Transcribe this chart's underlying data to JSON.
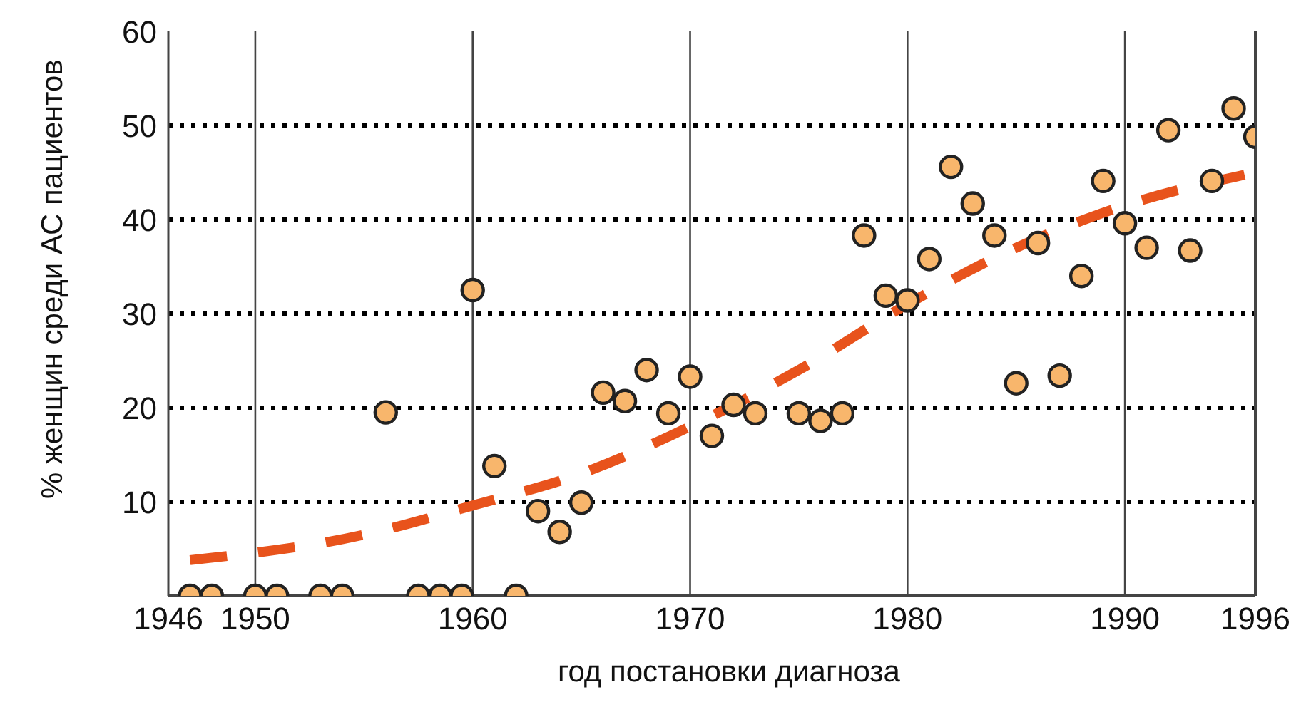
{
  "chart_data": {
    "type": "scatter",
    "xlabel": "год постановки диагноза",
    "ylabel": "% женщин среди АС пациентов",
    "xlim": [
      1946,
      1996
    ],
    "xticks": [
      1946,
      1950,
      1960,
      1970,
      1980,
      1990,
      1996
    ],
    "ylim": [
      0,
      60
    ],
    "yticks": [
      10,
      20,
      30,
      40,
      50,
      60
    ],
    "grid": true,
    "legend": false,
    "series": [
      {
        "color": "#f8b66c",
        "marker": "circle",
        "x": [
          1947,
          1948,
          1950,
          1951,
          1953,
          1954,
          1956,
          1957.5,
          1958.5,
          1959.5,
          1960,
          1961,
          1962,
          1963,
          1964,
          1965,
          1966,
          1967,
          1968,
          1969,
          1970,
          1971,
          1972,
          1973,
          1975,
          1976,
          1977,
          1978,
          1979,
          1980,
          1981,
          1982,
          1983,
          1984,
          1985,
          1986,
          1987,
          1988,
          1989,
          1990,
          1991,
          1992,
          1993,
          1994,
          1995,
          1996
        ],
        "values": [
          0,
          0,
          0,
          0,
          0,
          0,
          19.5,
          0,
          0,
          0,
          32.5,
          13.8,
          0,
          9,
          6.8,
          9.9,
          21.6,
          20.7,
          24,
          19.4,
          23.3,
          17,
          20.3,
          19.4,
          19.4,
          18.6,
          19.4,
          38.3,
          31.9,
          31.4,
          35.8,
          45.6,
          41.7,
          38.3,
          22.6,
          37.5,
          23.4,
          34,
          44.1,
          39.6,
          37,
          49.5,
          36.7,
          44.1,
          51.8,
          48.8
        ]
      },
      {
        "type": "line",
        "color": "#e8531c",
        "line_style": "dashed",
        "marker": "none",
        "x": [
          1947,
          1955,
          1960,
          1965,
          1970,
          1975,
          1980,
          1985,
          1990,
          1996
        ],
        "values": [
          3.8,
          6.5,
          9.6,
          13,
          18,
          24,
          31,
          37,
          41.5,
          45
        ]
      }
    ]
  }
}
